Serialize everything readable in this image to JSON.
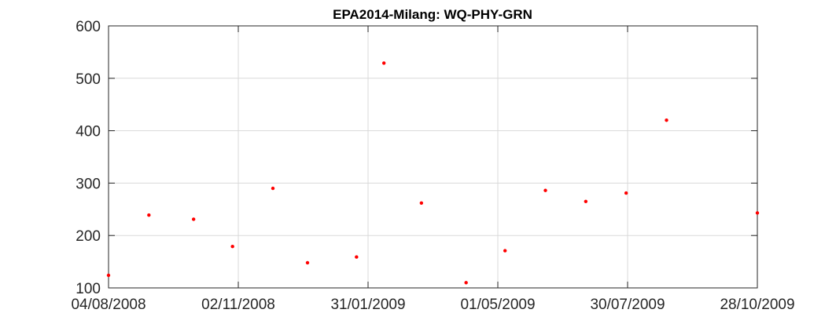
{
  "chart_data": {
    "type": "scatter",
    "title": "EPA2014-Milang: WQ-PHY-GRN",
    "xlabel": "",
    "ylabel": "",
    "x_axis_type": "date",
    "xlim": [
      "2008-08-04",
      "2009-10-28"
    ],
    "ylim": [
      100,
      600
    ],
    "x_ticks": [
      "2008-08-04",
      "2008-11-02",
      "2009-01-31",
      "2009-05-01",
      "2009-07-30",
      "2009-10-28"
    ],
    "x_tick_labels": [
      "04/08/2008",
      "02/11/2008",
      "31/01/2009",
      "01/05/2009",
      "30/07/2009",
      "28/10/2009"
    ],
    "y_ticks": [
      100,
      200,
      300,
      400,
      500,
      600
    ],
    "y_tick_labels": [
      "100",
      "200",
      "300",
      "400",
      "500",
      "600"
    ],
    "grid": true,
    "marker_color": "#ff0000",
    "axis_color": "#262626",
    "grid_color": "#d9d9d9",
    "series": [
      {
        "points": [
          {
            "x": "2008-08-04",
            "y": 124
          },
          {
            "x": "2008-09-01",
            "y": 239
          },
          {
            "x": "2008-10-02",
            "y": 231
          },
          {
            "x": "2008-10-29",
            "y": 179
          },
          {
            "x": "2008-11-26",
            "y": 290
          },
          {
            "x": "2008-12-20",
            "y": 148
          },
          {
            "x": "2009-01-23",
            "y": 159
          },
          {
            "x": "2009-02-11",
            "y": 529
          },
          {
            "x": "2009-03-09",
            "y": 262
          },
          {
            "x": "2009-04-09",
            "y": 110
          },
          {
            "x": "2009-05-06",
            "y": 171
          },
          {
            "x": "2009-06-03",
            "y": 286
          },
          {
            "x": "2009-07-01",
            "y": 265
          },
          {
            "x": "2009-07-29",
            "y": 281
          },
          {
            "x": "2009-08-26",
            "y": 420
          },
          {
            "x": "2009-10-28",
            "y": 243
          }
        ]
      }
    ]
  }
}
